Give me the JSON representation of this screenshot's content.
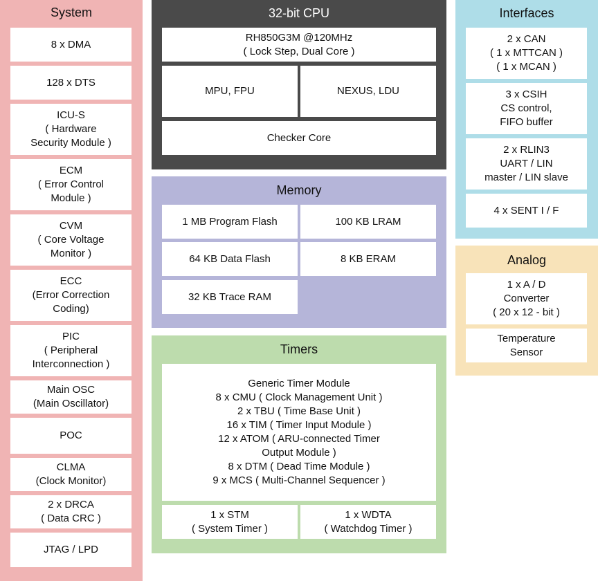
{
  "sections": [
    {
      "title": "System",
      "blocks": [
        {
          "lines": [
            "8 x DMA"
          ]
        },
        {
          "lines": [
            "128 x DTS"
          ]
        },
        {
          "lines": [
            "ICU-S",
            "( Hardware",
            "Security Module )"
          ]
        },
        {
          "lines": [
            "ECM",
            "( Error Control",
            "Module )"
          ]
        },
        {
          "lines": [
            "CVM",
            "( Core Voltage",
            "Monitor )"
          ]
        },
        {
          "lines": [
            "ECC",
            "(Error Correction",
            "Coding)"
          ]
        },
        {
          "lines": [
            "PIC",
            "( Peripheral",
            "Interconnection )"
          ]
        },
        {
          "lines": [
            "Main OSC",
            "(Main Oscillator)"
          ]
        },
        {
          "lines": [
            "POC"
          ]
        },
        {
          "lines": [
            "CLMA",
            "(Clock Monitor)"
          ]
        },
        {
          "lines": [
            "2 x DRCA",
            "( Data CRC )"
          ]
        },
        {
          "lines": [
            "JTAG / LPD"
          ]
        }
      ]
    },
    {
      "title": "32-bit CPU",
      "blocks": [
        {
          "lines": [
            "RH850G3M @120MHz",
            "( Lock Step, Dual Core )"
          ]
        },
        {
          "lines": [
            "MPU, FPU"
          ]
        },
        {
          "lines": [
            "NEXUS, LDU"
          ]
        },
        {
          "lines": [
            "Checker Core"
          ]
        }
      ]
    },
    {
      "title": "Memory",
      "blocks": [
        {
          "lines": [
            "1 MB Program Flash"
          ]
        },
        {
          "lines": [
            "100 KB LRAM"
          ]
        },
        {
          "lines": [
            "64 KB Data Flash"
          ]
        },
        {
          "lines": [
            "8 KB ERAM"
          ]
        },
        {
          "lines": [
            "32 KB Trace RAM"
          ]
        }
      ]
    },
    {
      "title": "Timers",
      "blocks": [
        {
          "lines": [
            "Generic Timer Module",
            "8 x CMU ( Clock Management Unit )",
            "2 x TBU ( Time Base Unit )",
            "16 x TIM ( Timer Input Module )",
            "12 x ATOM ( ARU-connected Timer",
            "Output Module )",
            "8 x DTM ( Dead Time Module )",
            "9 x MCS ( Multi-Channel Sequencer )"
          ]
        },
        {
          "lines": [
            "1 x STM",
            "( System Timer )"
          ]
        },
        {
          "lines": [
            "1 x WDTA",
            "( Watchdog Timer )"
          ]
        }
      ]
    },
    {
      "title": "Interfaces",
      "blocks": [
        {
          "lines": [
            "2 x CAN",
            "( 1 x MTTCAN )",
            "( 1 x MCAN )"
          ]
        },
        {
          "lines": [
            "3 x CSIH",
            "CS control,",
            "FIFO buffer"
          ]
        },
        {
          "lines": [
            "2 x RLIN3",
            "UART / LIN",
            "master / LIN slave"
          ]
        },
        {
          "lines": [
            "4 x SENT I / F"
          ]
        }
      ]
    },
    {
      "title": "Analog",
      "blocks": [
        {
          "lines": [
            "1 x A / D",
            "Converter",
            "( 20 x 12 - bit )"
          ]
        },
        {
          "lines": [
            "Temperature",
            "Sensor"
          ]
        }
      ]
    }
  ]
}
